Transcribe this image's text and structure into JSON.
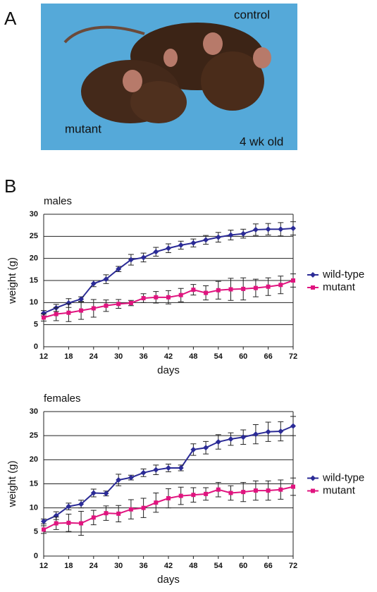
{
  "panel_a": {
    "label": "A",
    "annotations": [
      "control",
      "mutant",
      "4 wk old"
    ]
  },
  "panel_b": {
    "label": "B"
  },
  "chart_data": [
    {
      "type": "line",
      "title": "males",
      "xlabel": "days",
      "ylabel": "weight (g)",
      "x": [
        12,
        15,
        18,
        21,
        24,
        27,
        30,
        33,
        36,
        39,
        42,
        45,
        48,
        51,
        54,
        57,
        60,
        63,
        66,
        69,
        72
      ],
      "xlim": [
        12,
        72
      ],
      "ylim": [
        0,
        30
      ],
      "xticks": [
        12,
        18,
        24,
        30,
        36,
        42,
        48,
        54,
        60,
        66,
        72
      ],
      "yticks": [
        0,
        5,
        10,
        15,
        20,
        25,
        30
      ],
      "grid": true,
      "legend": "right",
      "series": [
        {
          "name": "wild-type",
          "color": "#2b2b96",
          "marker": "diamond",
          "values": [
            7.6,
            8.8,
            9.9,
            10.8,
            14.3,
            15.3,
            17.6,
            19.7,
            20.2,
            21.5,
            22.3,
            23.0,
            23.5,
            24.2,
            24.8,
            25.3,
            25.6,
            26.5,
            26.6,
            26.6,
            26.8
          ],
          "errors": [
            0.6,
            0.8,
            1.0,
            0.5,
            0.7,
            1.0,
            0.6,
            1.2,
            1.0,
            1.0,
            1.0,
            0.9,
            0.9,
            1.0,
            1.1,
            1.1,
            1.0,
            1.3,
            1.3,
            1.5,
            1.5
          ]
        },
        {
          "name": "mutant",
          "color": "#e0147f",
          "marker": "square",
          "values": [
            6.6,
            7.4,
            7.7,
            8.2,
            8.7,
            9.3,
            9.7,
            9.9,
            11.0,
            11.2,
            11.2,
            11.7,
            12.9,
            12.2,
            12.8,
            13.0,
            13.1,
            13.3,
            13.6,
            14.0,
            15.0
          ],
          "errors": [
            0.8,
            1.5,
            2.0,
            2.0,
            2.0,
            1.3,
            1.0,
            0.6,
            1.0,
            1.3,
            1.5,
            1.5,
            1.2,
            1.6,
            2.0,
            2.5,
            2.5,
            2.0,
            2.0,
            2.0,
            1.5
          ]
        }
      ]
    },
    {
      "type": "line",
      "title": "females",
      "xlabel": "days",
      "ylabel": "weight (g)",
      "x": [
        12,
        15,
        18,
        21,
        24,
        27,
        30,
        33,
        36,
        39,
        42,
        45,
        48,
        51,
        54,
        57,
        60,
        63,
        66,
        69,
        72
      ],
      "xlim": [
        12,
        72
      ],
      "ylim": [
        0,
        30
      ],
      "xticks": [
        12,
        18,
        24,
        30,
        36,
        42,
        48,
        54,
        60,
        66,
        72
      ],
      "yticks": [
        0,
        5,
        10,
        15,
        20,
        25,
        30
      ],
      "grid": true,
      "legend": "right",
      "series": [
        {
          "name": "wild-type",
          "color": "#2b2b96",
          "marker": "diamond",
          "values": [
            7.2,
            8.4,
            10.3,
            10.8,
            13.1,
            13.0,
            15.8,
            16.3,
            17.3,
            17.9,
            18.3,
            18.3,
            22.1,
            22.5,
            23.7,
            24.3,
            24.7,
            25.3,
            25.8,
            25.9,
            27.0
          ],
          "errors": [
            0.5,
            0.8,
            0.7,
            0.8,
            0.8,
            0.5,
            1.2,
            0.5,
            0.8,
            1.0,
            0.8,
            0.6,
            1.2,
            1.3,
            1.5,
            1.3,
            1.5,
            2.0,
            2.0,
            2.0,
            2.0
          ]
        },
        {
          "name": "mutant",
          "color": "#e0147f",
          "marker": "square",
          "values": [
            5.5,
            6.8,
            6.9,
            6.8,
            8.0,
            8.9,
            8.8,
            9.7,
            10.0,
            11.1,
            12.0,
            12.5,
            12.7,
            12.9,
            13.8,
            13.1,
            13.3,
            13.6,
            13.6,
            13.8,
            14.4
          ],
          "errors": [
            0.8,
            1.3,
            1.8,
            2.5,
            1.5,
            1.5,
            1.7,
            2.0,
            2.0,
            2.0,
            2.0,
            1.8,
            1.5,
            1.3,
            1.5,
            1.5,
            2.0,
            2.0,
            2.0,
            2.0,
            1.8
          ]
        }
      ]
    }
  ]
}
